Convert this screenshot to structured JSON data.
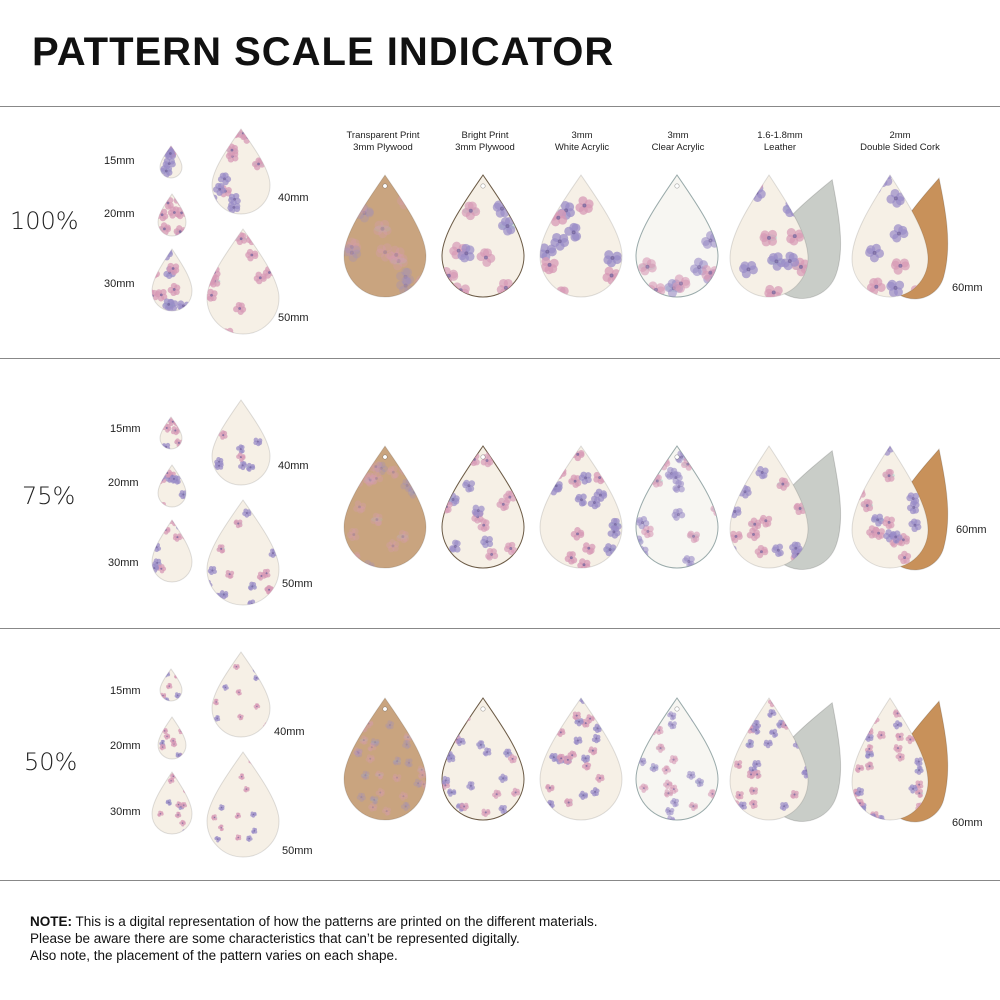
{
  "title": "PATTERN SCALE INDICATOR",
  "materials": [
    {
      "line1": "Transparent Print",
      "line2": "3mm Plywood"
    },
    {
      "line1": "Bright Print",
      "line2": "3mm Plywood"
    },
    {
      "line1": "3mm",
      "line2": "White Acrylic"
    },
    {
      "line1": "3mm",
      "line2": "Clear Acrylic"
    },
    {
      "line1": "1.6-1.8mm",
      "line2": "Leather"
    },
    {
      "line1": "2mm",
      "line2": "Double Sided Cork"
    }
  ],
  "sections": [
    {
      "scale": "100%",
      "sizes": [
        "15mm",
        "20mm",
        "30mm",
        "40mm",
        "50mm"
      ],
      "large_size": "60mm"
    },
    {
      "scale": "75%",
      "sizes": [
        "15mm",
        "20mm",
        "30mm",
        "40mm",
        "50mm"
      ],
      "large_size": "60mm"
    },
    {
      "scale": "50%",
      "sizes": [
        "15mm",
        "20mm",
        "30mm",
        "40mm",
        "50mm"
      ],
      "large_size": "60mm"
    }
  ],
  "note": {
    "label": "NOTE:",
    "line1": " This is a digital representation of how the patterns are printed on the different materials.",
    "line2": "Please be aware there are some characteristics that can’t be represented digitally.",
    "line3": "Also note, the placement of the pattern varies on each shape."
  },
  "colors": {
    "plywood": "#c9a47f",
    "cream": "#f6f0e6",
    "leather_back": "#c9cdc8",
    "cork": "#c8915a",
    "flower_pink": "#d79ab6",
    "flower_purple": "#9a8cc7",
    "leaf": "#9ccfc8"
  }
}
